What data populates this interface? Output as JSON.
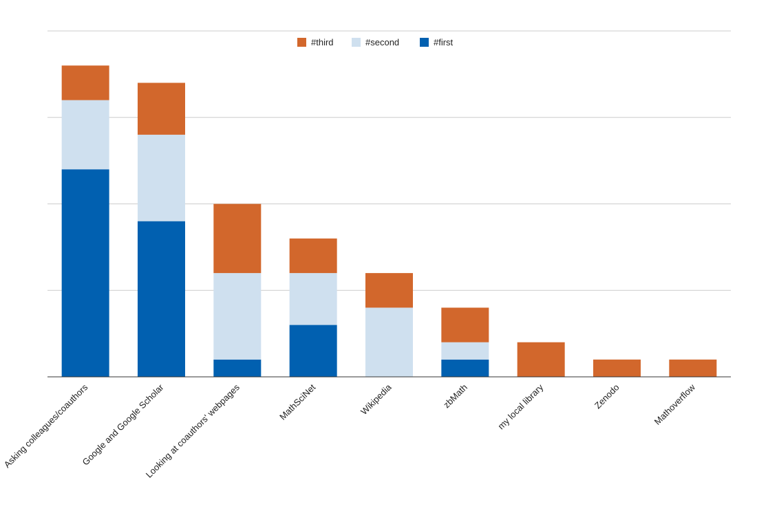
{
  "chart_data": {
    "type": "bar",
    "stacked": true,
    "title": "",
    "xlabel": "",
    "ylabel": "",
    "ylim": [
      0,
      20
    ],
    "grid": true,
    "legend_position": "top-center",
    "categories": [
      "Asking colleagues/coauthors",
      "Google and Google Scholar",
      "Looking at coauthors' webpages",
      "MathSciNet",
      "Wikipedia",
      "zbMath",
      "my local library",
      "Zenodo",
      "Mathoverflow"
    ],
    "series": [
      {
        "name": "#first",
        "color": "#0160b0",
        "values": [
          12,
          9,
          1,
          3,
          0,
          1,
          0,
          0,
          0
        ]
      },
      {
        "name": "#second",
        "color": "#cfe0ef",
        "values": [
          4,
          5,
          5,
          3,
          4,
          1,
          0,
          0,
          0
        ]
      },
      {
        "name": "#third",
        "color": "#d2672c",
        "values": [
          2,
          3,
          4,
          2,
          2,
          2,
          2,
          1,
          1
        ]
      }
    ],
    "legend_order": [
      "#third",
      "#second",
      "#first"
    ]
  }
}
